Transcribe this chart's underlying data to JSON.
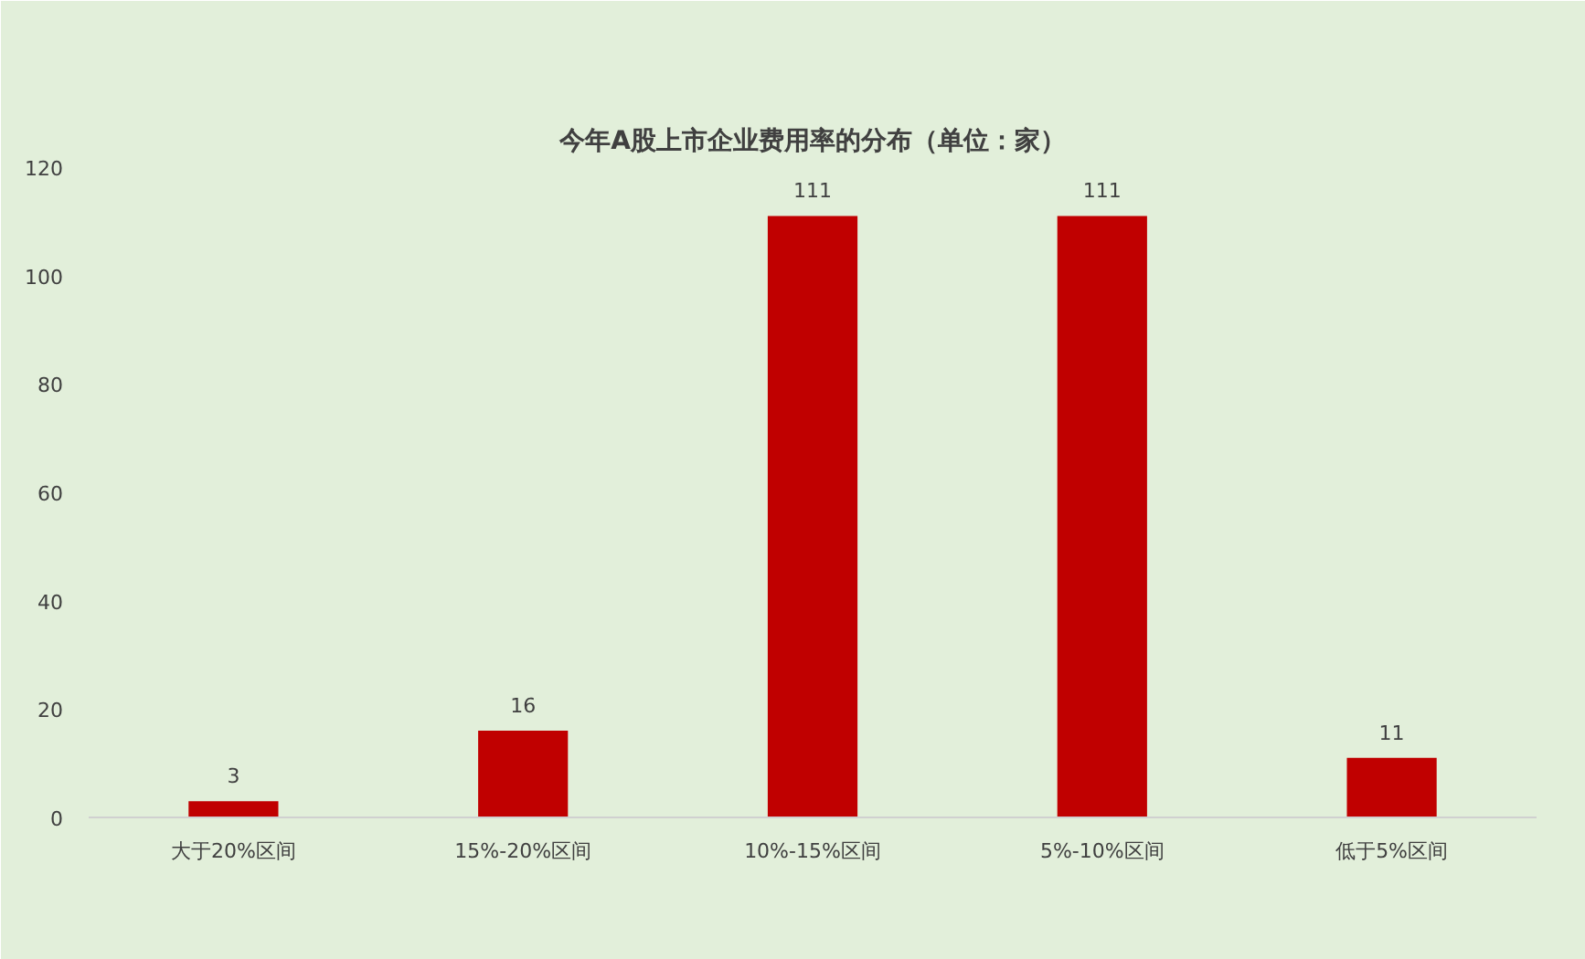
{
  "chart_data": {
    "type": "bar",
    "title": "今年A股上市企业费用率的分布（单位：家）",
    "categories": [
      "大于20%区间",
      "15%-20%区间",
      "10%-15%区间",
      "5%-10%区间",
      "低于5%区间"
    ],
    "values": [
      3,
      16,
      111,
      111,
      11
    ],
    "color": "#c00000",
    "ylim": [
      0,
      120
    ],
    "yticks": [
      0,
      20,
      40,
      60,
      80,
      100,
      120
    ],
    "data_labels": true
  }
}
